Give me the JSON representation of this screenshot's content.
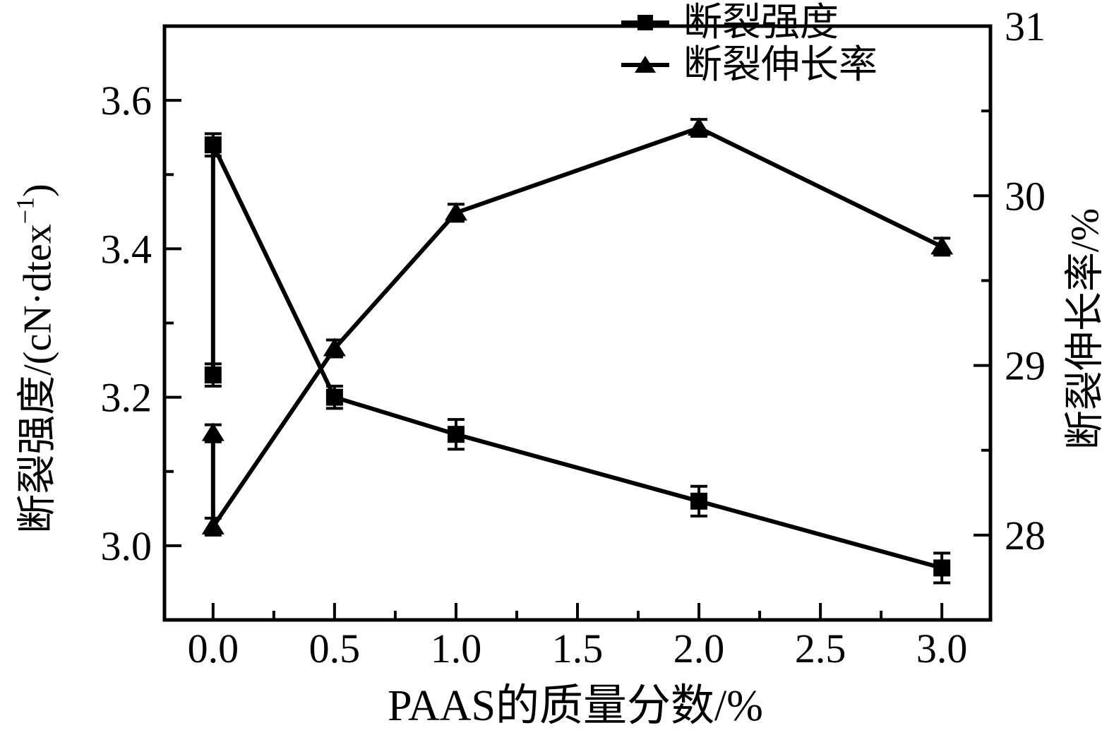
{
  "chart_data": {
    "type": "line",
    "title": "",
    "xlabel": "PAAS的质量分数/%",
    "ylabel_left": "断裂强度/(cN·dtex⁻¹)",
    "ylabel_left_parts": {
      "pre": "断裂强度/(cN·dtex",
      "sup": "−1",
      "post": ")"
    },
    "ylabel_right": "断裂伸长率/%",
    "grid": false,
    "background": "#ffffff",
    "line_color": "#000000",
    "x_axis": {
      "min": -0.2,
      "max": 3.2,
      "major_ticks": [
        0.0,
        0.5,
        1.0,
        1.5,
        2.0,
        2.5,
        3.0
      ],
      "major_labels": [
        "0.0",
        "0.5",
        "1.0",
        "1.5",
        "2.0",
        "2.5",
        "3.0"
      ],
      "minor_ticks": [
        0.25,
        0.75,
        1.25,
        1.75,
        2.25,
        2.75
      ]
    },
    "y_left": {
      "min": 2.9,
      "max": 3.7,
      "major_ticks": [
        3.0,
        3.2,
        3.4,
        3.6
      ],
      "major_labels": [
        "3.0",
        "3.2",
        "3.4",
        "3.6"
      ],
      "minor_ticks": [
        3.1,
        3.3,
        3.5
      ]
    },
    "y_right": {
      "min": 27.5,
      "max": 31.0,
      "major_ticks": [
        28,
        29,
        30,
        31
      ],
      "major_labels": [
        "28",
        "29",
        "30",
        "31"
      ],
      "minor_ticks": [
        28.5,
        29.5,
        30.5
      ]
    },
    "series": [
      {
        "key": "strength",
        "name": "断裂强度",
        "axis": "left",
        "marker": "square",
        "x": [
          0.0,
          0.0,
          0.5,
          1.0,
          2.0,
          3.0
        ],
        "y": [
          3.23,
          3.54,
          3.2,
          3.15,
          3.06,
          2.97
        ],
        "yerr": [
          0.015,
          0.015,
          0.015,
          0.02,
          0.02,
          0.02
        ]
      },
      {
        "key": "elongation",
        "name": "断裂伸长率",
        "axis": "right",
        "marker": "triangle",
        "x": [
          0.0,
          0.0,
          0.5,
          1.0,
          2.0,
          3.0
        ],
        "y": [
          28.6,
          28.05,
          29.1,
          29.9,
          30.4,
          29.7
        ],
        "yerr": [
          0.05,
          0.05,
          0.05,
          0.05,
          0.05,
          0.05
        ]
      }
    ],
    "legend": {
      "position": "top-center",
      "entries": [
        "断裂强度",
        "断裂伸长率"
      ]
    }
  }
}
